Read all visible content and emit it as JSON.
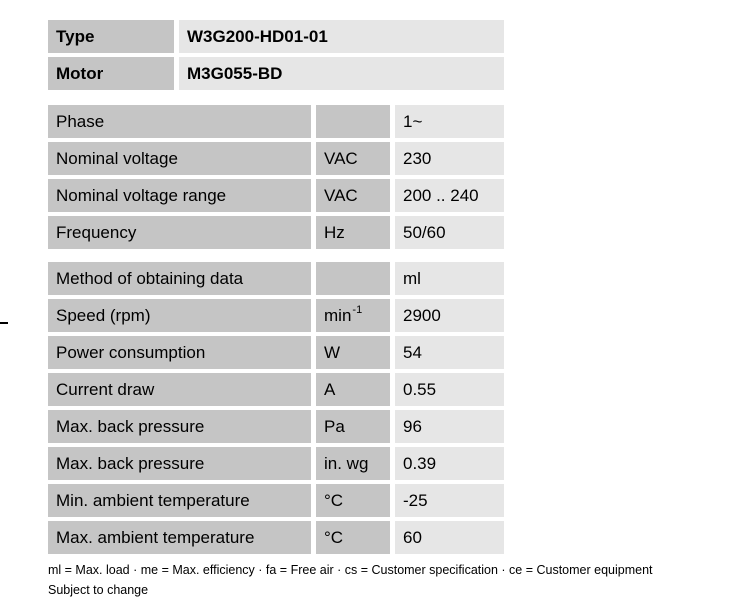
{
  "colors": {
    "label_cell": "#c5c5c5",
    "value_cell": "#e6e6e6",
    "text": "#000000",
    "background": "#ffffff"
  },
  "tables": {
    "identity": {
      "rows": [
        {
          "label": "Type",
          "value": "W3G200-HD01-01"
        },
        {
          "label": "Motor",
          "value": "M3G055-BD"
        }
      ]
    },
    "electrical": {
      "rows": [
        {
          "label": "Phase",
          "unit": "",
          "value": "1~"
        },
        {
          "label": "Nominal voltage",
          "unit": "VAC",
          "value": "230"
        },
        {
          "label": "Nominal voltage range",
          "unit": "VAC",
          "value": "200 .. 240"
        },
        {
          "label": "Frequency",
          "unit": "Hz",
          "value": "50/60"
        }
      ]
    },
    "performance": {
      "rows": [
        {
          "label": "Method of obtaining data",
          "unit": "",
          "value": "ml"
        },
        {
          "label": "Speed (rpm)",
          "unit": "min",
          "unit_sup": "-1",
          "value": "2900"
        },
        {
          "label": "Power consumption",
          "unit": "W",
          "value": "54"
        },
        {
          "label": "Current draw",
          "unit": "A",
          "value": "0.55"
        },
        {
          "label": "Max. back pressure",
          "unit": "Pa",
          "value": "96"
        },
        {
          "label": "Max. back pressure",
          "unit": "in. wg",
          "value": "0.39"
        },
        {
          "label": "Min. ambient temperature",
          "unit": "°C",
          "value": "-25"
        },
        {
          "label": "Max. ambient temperature",
          "unit": "°C",
          "value": "60"
        }
      ]
    }
  },
  "footer": {
    "legend": "ml = Max. load · me = Max. efficiency · fa = Free air · cs = Customer specification · ce = Customer equipment",
    "note": "Subject to change"
  }
}
